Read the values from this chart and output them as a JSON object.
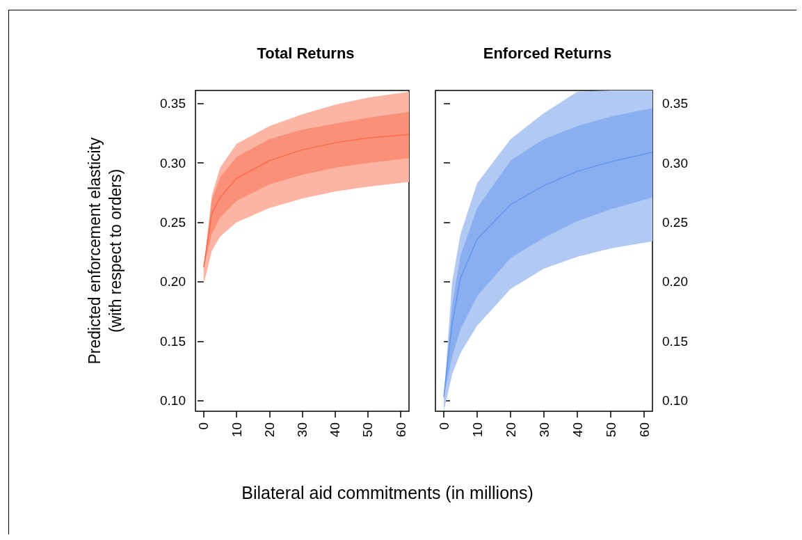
{
  "chart_data": [
    {
      "type": "line",
      "title": "Total Returns",
      "ylabel": "Predicted enforcement elasticity\n(with respect to orders)",
      "xlabel": "Bilateral aid commitments (in millions)",
      "xlim": [
        -2.5,
        62.5
      ],
      "xticks": [
        0,
        10,
        20,
        30,
        40,
        50,
        60
      ],
      "ylim": [
        0.091,
        0.361
      ],
      "yticks": [
        {
          "value": 0.1,
          "label": "0.10"
        },
        {
          "value": 0.15,
          "label": "0.15"
        },
        {
          "value": 0.2,
          "label": "0.20"
        },
        {
          "value": 0.25,
          "label": "0.25"
        },
        {
          "value": 0.3,
          "label": "0.30"
        },
        {
          "value": 0.35,
          "label": "0.35"
        }
      ],
      "x": [
        0,
        2.5,
        5,
        10,
        20,
        30,
        40,
        50,
        62.5
      ],
      "series": [
        {
          "color": "#fcb5a5",
          "values": [
            null,
            null,
            null,
            null,
            null,
            null,
            null,
            null,
            null
          ],
          "lower": [
            0.198,
            0.226,
            0.238,
            0.25,
            0.262,
            0.27,
            0.276,
            0.28,
            0.284
          ],
          "upper": [
            0.212,
            0.273,
            0.296,
            0.316,
            0.331,
            0.341,
            0.349,
            0.355,
            0.36
          ]
        },
        {
          "color": "#f96b4b",
          "values": [
            0.212,
            0.2575,
            0.271,
            0.287,
            0.302,
            0.311,
            0.317,
            0.321,
            0.324
          ],
          "lower": [
            0.212,
            0.24,
            0.254,
            0.268,
            0.282,
            0.29,
            0.296,
            0.3,
            0.304
          ],
          "upper": [
            0.212,
            0.269,
            0.288,
            0.305,
            0.32,
            0.328,
            0.333,
            0.338,
            0.343
          ]
        }
      ]
    },
    {
      "type": "line",
      "title": "Enforced Returns",
      "xlim": [
        -2.5,
        62.5
      ],
      "xticks": [
        0,
        10,
        20,
        30,
        40,
        50,
        60
      ],
      "y2lim": [
        0.091,
        0.361
      ],
      "y2ticks": [
        {
          "value": 0.1,
          "label": "0.10"
        },
        {
          "value": 0.15,
          "label": "0.15"
        },
        {
          "value": 0.2,
          "label": "0.20"
        },
        {
          "value": 0.25,
          "label": "0.25"
        },
        {
          "value": 0.3,
          "label": "0.30"
        },
        {
          "value": 0.35,
          "label": "0.35"
        }
      ],
      "x": [
        0,
        2.5,
        5,
        10,
        20,
        30,
        40,
        50,
        62.5
      ],
      "series": [
        {
          "axis": "y2",
          "color": "#b1c9f3",
          "values": [
            null,
            null,
            null,
            null,
            null,
            null,
            null,
            null,
            null
          ],
          "lower": [
            0.091,
            0.122,
            0.14,
            0.163,
            0.194,
            0.211,
            0.221,
            0.228,
            0.234
          ],
          "upper": [
            0.103,
            0.2,
            0.24,
            0.283,
            0.32,
            0.342,
            0.36,
            0.361,
            0.361
          ]
        },
        {
          "axis": "y2",
          "color": "#6495ed",
          "values": [
            0.103,
            0.165,
            0.203,
            0.236,
            0.265,
            0.281,
            0.293,
            0.301,
            0.309
          ],
          "lower": [
            0.103,
            0.137,
            0.16,
            0.188,
            0.22,
            0.237,
            0.251,
            0.261,
            0.271
          ],
          "upper": [
            0.103,
            0.18,
            0.222,
            0.262,
            0.302,
            0.32,
            0.331,
            0.339,
            0.346
          ]
        }
      ]
    }
  ]
}
